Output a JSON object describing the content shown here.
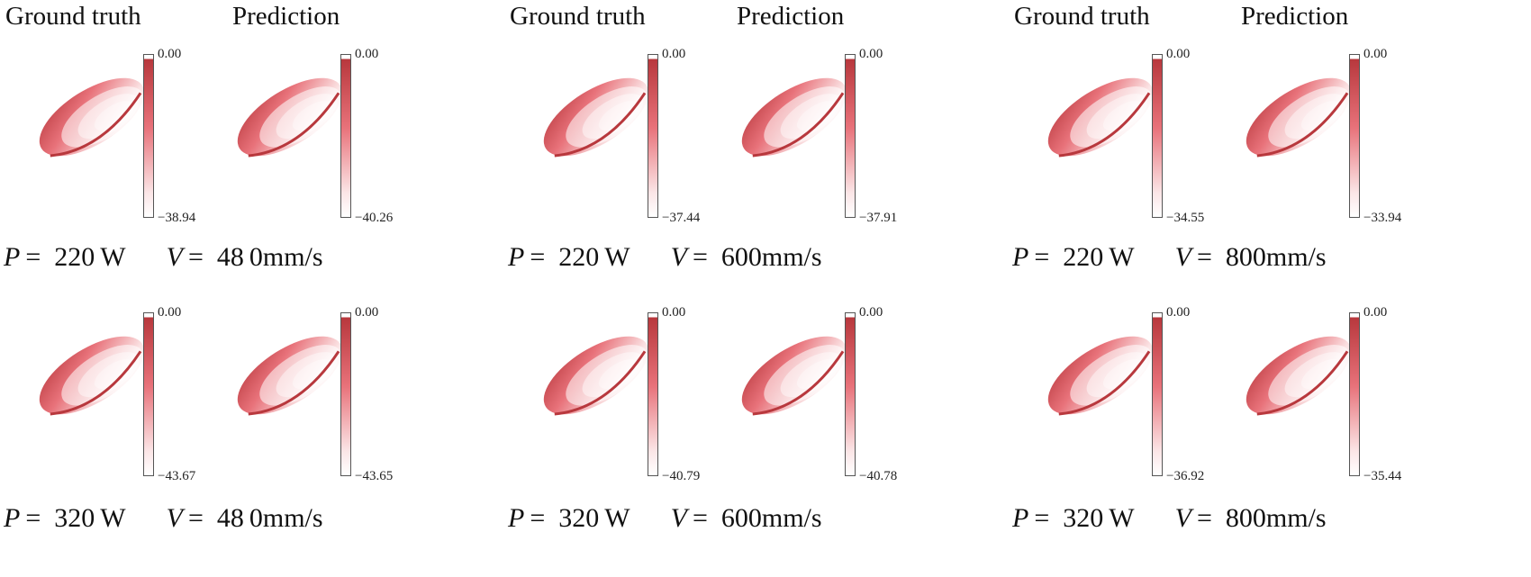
{
  "headers": {
    "ground_truth": "Ground truth",
    "prediction": "Prediction"
  },
  "colors": {
    "dark": "#b8383d",
    "mid": "#e8727a",
    "light": "#fbe5e6",
    "white": "#ffffff"
  },
  "panels": [
    {
      "P": "220",
      "V": "48 0",
      "gt": {
        "max": "0.00",
        "min": "−38.94"
      },
      "pred": {
        "max": "0.00",
        "min": "−40.26"
      }
    },
    {
      "P": "220",
      "V": "600",
      "gt": {
        "max": "0.00",
        "min": "−37.44"
      },
      "pred": {
        "max": "0.00",
        "min": "−37.91"
      }
    },
    {
      "P": "220",
      "V": "800",
      "gt": {
        "max": "0.00",
        "min": "−34.55"
      },
      "pred": {
        "max": "0.00",
        "min": "−33.94"
      }
    },
    {
      "P": "320",
      "V": "48 0",
      "gt": {
        "max": "0.00",
        "min": "−43.67"
      },
      "pred": {
        "max": "0.00",
        "min": "−43.65"
      }
    },
    {
      "P": "320",
      "V": "600",
      "gt": {
        "max": "0.00",
        "min": "−40.79"
      },
      "pred": {
        "max": "0.00",
        "min": "−40.78"
      }
    },
    {
      "P": "320",
      "V": "800",
      "gt": {
        "max": "0.00",
        "min": "−36.92"
      },
      "pred": {
        "max": "0.00",
        "min": "−35.44"
      }
    }
  ],
  "units": {
    "power": "W",
    "speed": "mm/s",
    "p_symbol": "P",
    "v_symbol": "V",
    "equals": "="
  }
}
